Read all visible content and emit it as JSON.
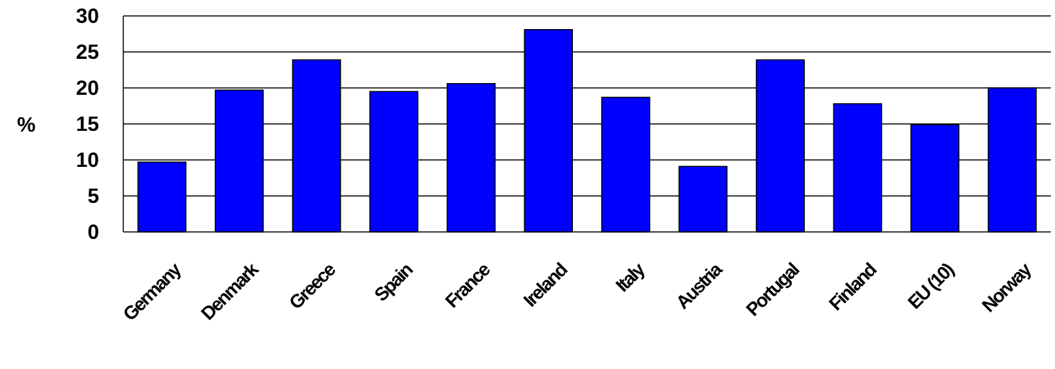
{
  "chart_data": {
    "type": "bar",
    "title": "",
    "xlabel": "",
    "ylabel": "%",
    "ylim": [
      0,
      30
    ],
    "yticks": [
      0,
      5,
      10,
      15,
      20,
      25,
      30
    ],
    "grid": true,
    "legend": "none",
    "bar_color": "#0000ff",
    "categories": [
      "Germany",
      "Denmark",
      "Greece",
      "Spain",
      "France",
      "Ireland",
      "Italy",
      "Austria",
      "Portugal",
      "Finland",
      "EU (10)",
      "Norway"
    ],
    "values": [
      9.7,
      19.7,
      23.9,
      19.5,
      20.6,
      28.1,
      18.7,
      9.1,
      23.9,
      17.8,
      14.9,
      20.0
    ]
  }
}
